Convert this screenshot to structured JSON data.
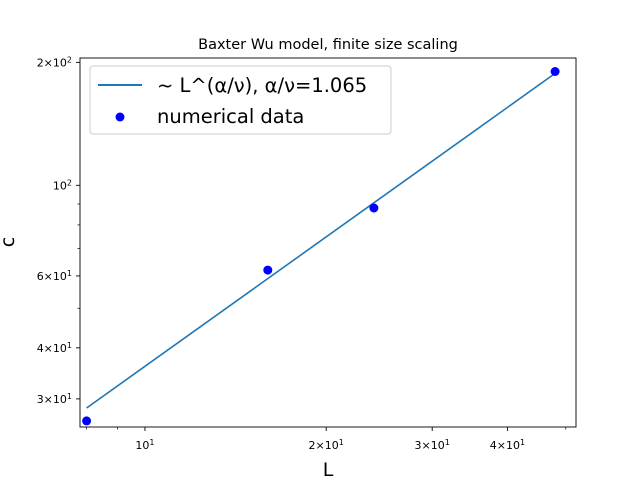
{
  "chart_data": {
    "type": "line",
    "title": "Baxter Wu model, finite size scaling",
    "xlabel": "L",
    "ylabel": "c",
    "xscale": "log",
    "yscale": "log",
    "xlim": [
      7.8,
      52
    ],
    "ylim": [
      25.6,
      205
    ],
    "grid": false,
    "legend_placement": "top-left",
    "xticks": [
      {
        "value": 10,
        "base": "10",
        "exp": "1",
        "coef": ""
      },
      {
        "value": 20,
        "base": "10",
        "exp": "1",
        "coef": "2×"
      },
      {
        "value": 30,
        "base": "10",
        "exp": "1",
        "coef": "3×"
      },
      {
        "value": 40,
        "base": "10",
        "exp": "1",
        "coef": "4×"
      }
    ],
    "yticks": [
      {
        "value": 30,
        "base": "10",
        "exp": "1",
        "coef": "3×"
      },
      {
        "value": 40,
        "base": "10",
        "exp": "1",
        "coef": "4×"
      },
      {
        "value": 60,
        "base": "10",
        "exp": "1",
        "coef": "6×"
      },
      {
        "value": 100,
        "base": "10",
        "exp": "2",
        "coef": ""
      },
      {
        "value": 200,
        "base": "10",
        "exp": "2",
        "coef": "2×"
      }
    ],
    "x_minor_ticks": [
      8,
      9,
      50
    ],
    "y_minor_ticks": [
      50,
      70,
      80,
      90
    ],
    "series": [
      {
        "name": "~ L^(α/ν), α/ν=1.065",
        "kind": "line",
        "color": "#1f77b4",
        "x": [
          8,
          48
        ],
        "y": [
          28.5,
          188
        ]
      },
      {
        "name": "numerical data",
        "kind": "scatter",
        "color": "#0000ff",
        "x": [
          8,
          16,
          24,
          48
        ],
        "y": [
          26.5,
          62,
          88,
          190
        ]
      }
    ]
  }
}
